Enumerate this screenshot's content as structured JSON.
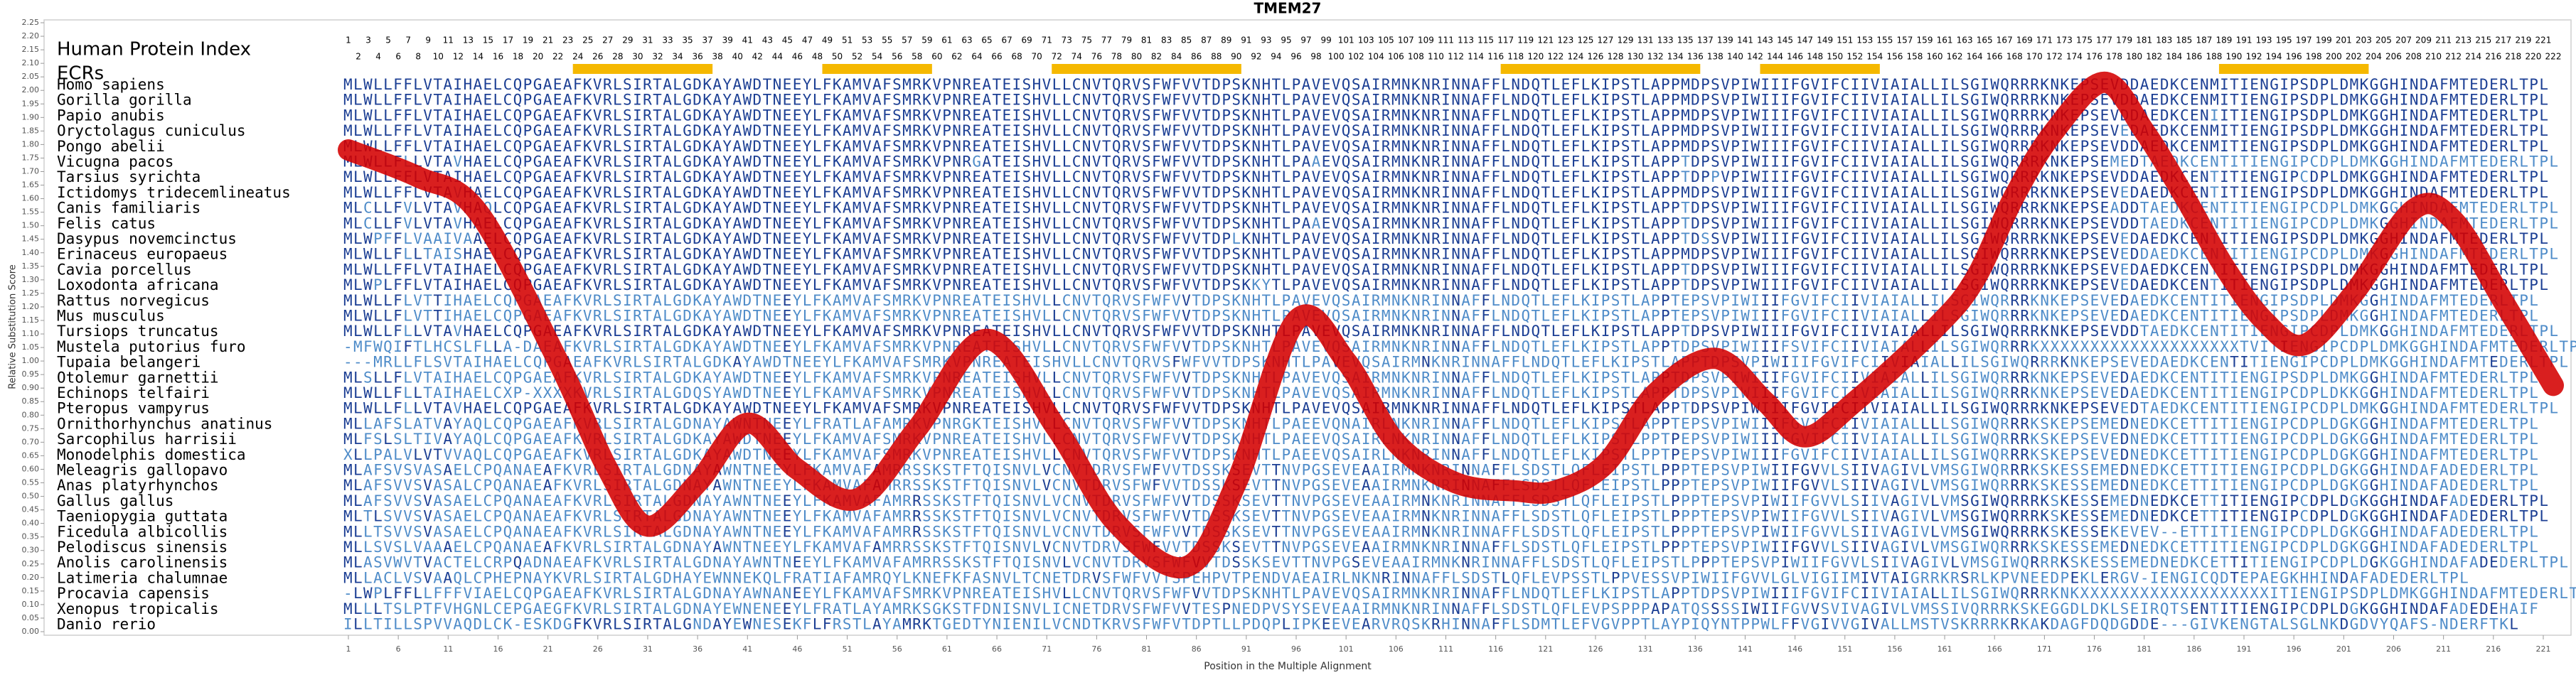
{
  "chart_data": {
    "type": "line",
    "title": "TMEM27",
    "xlabel": "Position in the Multiple Alignment",
    "ylabel": "Relative Substitution Score",
    "color": "#d40000",
    "x": [
      1,
      8,
      14,
      22,
      27,
      31,
      36,
      41,
      46,
      52,
      58,
      65,
      72,
      78,
      85,
      90,
      96,
      101,
      106,
      112,
      118,
      122,
      127,
      132,
      138,
      143,
      147,
      152,
      160,
      164,
      168,
      172,
      177,
      181,
      185,
      189,
      193,
      197,
      202,
      208,
      212,
      217,
      222
    ],
    "values": [
      1.78,
      1.68,
      1.55,
      1.0,
      0.6,
      0.39,
      0.55,
      0.77,
      0.6,
      0.49,
      0.75,
      1.08,
      0.75,
      0.4,
      0.24,
      0.55,
      1.15,
      1.0,
      0.7,
      0.55,
      0.52,
      0.52,
      0.62,
      0.88,
      1.01,
      0.85,
      0.72,
      0.85,
      1.12,
      1.3,
      1.61,
      1.85,
      2.03,
      1.85,
      1.61,
      1.35,
      1.15,
      1.06,
      1.25,
      1.56,
      1.52,
      1.22,
      0.91
    ],
    "xlim": [
      1,
      222
    ],
    "ylim": [
      0,
      2.25
    ],
    "xticks": [
      1,
      6,
      11,
      16,
      21,
      26,
      31,
      36,
      41,
      46,
      51,
      56,
      61,
      66,
      71,
      76,
      81,
      86,
      91,
      96,
      101,
      106,
      111,
      116,
      121,
      126,
      131,
      136,
      141,
      146,
      151,
      156,
      161,
      166,
      171,
      176,
      181,
      186,
      191,
      196,
      201,
      206,
      211,
      216,
      221
    ],
    "yticks": [
      {
        "value": 0,
        "label": "0.00"
      },
      {
        "value": 0.05,
        "label": "0.05"
      },
      {
        "value": 0.1,
        "label": "0.10"
      },
      {
        "value": 0.15,
        "label": "0.15"
      },
      {
        "value": 0.2,
        "label": "0.20"
      },
      {
        "value": 0.25,
        "label": "0.25"
      },
      {
        "value": 0.3,
        "label": "0.30"
      },
      {
        "value": 0.35,
        "label": "0.35"
      },
      {
        "value": 0.4,
        "label": "0.40"
      },
      {
        "value": 0.45,
        "label": "0.45"
      },
      {
        "value": 0.5,
        "label": "0.50"
      },
      {
        "value": 0.55,
        "label": "0.55"
      },
      {
        "value": 0.6,
        "label": "0.60"
      },
      {
        "value": 0.65,
        "label": "0.65"
      },
      {
        "value": 0.7,
        "label": "0.70"
      },
      {
        "value": 0.75,
        "label": "0.75"
      },
      {
        "value": 0.8,
        "label": "0.80"
      },
      {
        "value": 0.85,
        "label": "0.85"
      },
      {
        "value": 0.9,
        "label": "0.90"
      },
      {
        "value": 0.95,
        "label": "0.95"
      },
      {
        "value": 1,
        "label": "1.00"
      },
      {
        "value": 1.05,
        "label": "1.05"
      },
      {
        "value": 1.1,
        "label": "1.10"
      },
      {
        "value": 1.15,
        "label": "1.15"
      },
      {
        "value": 1.2,
        "label": "1.20"
      },
      {
        "value": 1.25,
        "label": "1.25"
      },
      {
        "value": 1.3,
        "label": "1.30"
      },
      {
        "value": 1.35,
        "label": "1.35"
      },
      {
        "value": 1.4,
        "label": "1.40"
      },
      {
        "value": 1.45,
        "label": "1.45"
      },
      {
        "value": 1.5,
        "label": "1.50"
      },
      {
        "value": 1.55,
        "label": "1.55"
      },
      {
        "value": 1.6,
        "label": "1.60"
      },
      {
        "value": 1.65,
        "label": "1.65"
      },
      {
        "value": 1.7,
        "label": "1.70"
      },
      {
        "value": 1.75,
        "label": "1.75"
      },
      {
        "value": 1.8,
        "label": "1.80"
      },
      {
        "value": 1.85,
        "label": "1.85"
      },
      {
        "value": 1.9,
        "label": "1.90"
      },
      {
        "value": 1.95,
        "label": "1.95"
      },
      {
        "value": 2,
        "label": "2.00"
      },
      {
        "value": 2.05,
        "label": "2.05"
      },
      {
        "value": 2.1,
        "label": "2.10"
      },
      {
        "value": 2.15,
        "label": "2.15"
      },
      {
        "value": 2.2,
        "label": "2.20"
      },
      {
        "value": 2.25,
        "label": "2.25"
      }
    ]
  },
  "index_label": "Human Protein Index",
  "human_protein_index": [
    1,
    2,
    3,
    4,
    5,
    6,
    7,
    8,
    9,
    10,
    11,
    12,
    13,
    14,
    15,
    16,
    17,
    18,
    19,
    20,
    21,
    22,
    23,
    24,
    25,
    26,
    27,
    28,
    29,
    30,
    31,
    32,
    33,
    34,
    35,
    36,
    37,
    38,
    39,
    40,
    41,
    42,
    43,
    44,
    45,
    46,
    47,
    48,
    49,
    50,
    51,
    52,
    53,
    54,
    55,
    56,
    57,
    58,
    59,
    60,
    61,
    62,
    63,
    64,
    65,
    66,
    67,
    68,
    69,
    70,
    71,
    72,
    73,
    74,
    75,
    76,
    77,
    78,
    79,
    80,
    81,
    82,
    83,
    84,
    85,
    86,
    87,
    88,
    89,
    90,
    91,
    92,
    93,
    94,
    95,
    96,
    97,
    98,
    99,
    100,
    101,
    102,
    103,
    104,
    105,
    106,
    107,
    108,
    109,
    110,
    111,
    112,
    113,
    114,
    115,
    116,
    117,
    118,
    119,
    120,
    121,
    122,
    123,
    124,
    125,
    126,
    127,
    128,
    129,
    130,
    131,
    132,
    133,
    134,
    135,
    136,
    137,
    138,
    139,
    140,
    141,
    142,
    143,
    144,
    145,
    146,
    147,
    148,
    149,
    150,
    151,
    152,
    153,
    154,
    155,
    156,
    157,
    158,
    159,
    160,
    161,
    162,
    163,
    164,
    165,
    166,
    167,
    168,
    169,
    170,
    171,
    172,
    173,
    174,
    175,
    176,
    177,
    178,
    179,
    180,
    181,
    182,
    183,
    184,
    185,
    186,
    187,
    188,
    189,
    190,
    191,
    192,
    193,
    194,
    195,
    196,
    197,
    198,
    199,
    200,
    201,
    202,
    203,
    204,
    205,
    206,
    207,
    208,
    209,
    210,
    211,
    212,
    213,
    214,
    215,
    216,
    217,
    218,
    219,
    220,
    221,
    222
  ],
  "ecr_label": "ECRs",
  "ecr_color": "#f5b800",
  "ecrs": [
    [
      24,
      37
    ],
    [
      49,
      59
    ],
    [
      72,
      90
    ],
    [
      117,
      136
    ],
    [
      143,
      154
    ],
    [
      189,
      203
    ]
  ],
  "alignment": {
    "rows": [
      {
        "species": "Homo sapiens",
        "sequence": "MLWLLFFLVTAIHAELCQPGAEAFKVRLSIRTALGDKAYAWDTNEEYLFKAMVAFSMRKVPNREATEISHVLLCNVTQRVSFWFVVTDPSKNHTLPAVEVQSAIRMNKNRINNAFFLNDQTLEFLKIPSTLAPPMDPSVPIWIIIFGVIFCIIVIAIALLILSGIWQRRRKNKEPSEVDDAEDKCENMITIENGIPSDPLDMKGGHINDAFMTEDERLTPL"
      },
      {
        "species": "Gorilla gorilla",
        "sequence": "MLWLLFFLVTAIHAELCQPGAEAFKVRLSIRTALGDKAYAWDTNEEYLFKAMVAFSMRKVPNREATEISHVLLCNVTQRVSFWFVVTDPSKNHTLPAVEVQSAIRMNKNRINNAFFLNDQTLEFLKIPSTLAPPMDPSVPIWIIIFGVIFCIIVIAIALLILSGIWQRRRKNKEPSEVDDAEDKCENMITIENGIPSDPLDMKGGHINDAFMTEDERLTPL"
      },
      {
        "species": "Papio anubis",
        "sequence": "MLWLLFFLVTAIHAELCQPGAEAFKVRLSIRTALGDKAYAWDTNEEYLFKAMVAFSMRKVPNREATEISHVLLCNVTQRVSFWFVVTDPSKNHTLPAVEVQSAIRMNKNRINNAFFLNDQTLEFLKIPSTLAPPMDPSVPIWIIIFGVIFCIIVIAIALLILSGIWQRRRKNKEPSEVDDAEDKCENIITIENGIPSDPLDMKGGHINDAFMTEDERLTPL"
      },
      {
        "species": "Oryctolagus cuniculus",
        "sequence": "MLWLLFFLVTAIHAELCQPGAEAFKVRLSIRTALGDKAYAWDTNEEYLFKAMVAFSMRKVPNREATEISHVLLCNVTQRVSFWFVVTDPSKNHTLPAVEVQSAIRMNKNRINNAFFLNDQTLEFLKIPSTLAPPMDPSVPIWIIIFGVIFCIIVIAIALLILSGIWQRRRKNKEPSEVEDAEDKCENMITIENGIPSDPLDMKGGHINDAFMTEDERLTPL"
      },
      {
        "species": "Pongo abelii",
        "sequence": "MLWLLFFLVTAIHAELCQPGAEAFKVRLSIRTALGDKAYAWDTNEEYLFKAMVAFSMRKVPNREATEISHVLLCNVTQRVSFWFVVTDPSKNHTLPAVEVQSAIRMNKNRINNAFFLNDQTLEFLKIPSTLAPPMDPSVPIWIIIFGVIFCIIVIAIALLILSGIWQRRRKNKEPSEVDDAEDKCENMITIENGIPSDPLDMKGGHINDAFMTEDERLTPL"
      },
      {
        "species": "Vicugna pacos",
        "sequence": "MLWLLFLLVTAVHAELCQPGAEAFKVRLSIRTALGDKAYAWDTNEEYLFKAMVAFSMRKVPNRGATEISHVLLCNVTQRVSFWFVVTDPSKNHTLPAAEVQSAIRMNKNRINNAFFLNDQTLEFLKIPSTLAPPTDPSVPIWIIIFGVIFCIIVIAIALLILSGIWQRRRKNKEPSEMEDTAEDKCENTITIENGIPCDPLDMKGGHINDAFMTEDERLTPL"
      },
      {
        "species": "Tarsius syrichta",
        "sequence": "MLWLLFFLVTAIHAELCQPGAEAFKVRLSIRTALGDKAYAWDTNEEYLFKAMVAFSMRKVPNREATEISHVLLCNVTQRVSFWFVVTDPSKNHTLPAVEVQSAIRMNKNRINNAFFLNDQTLEFLKIPSTLAPPTDPPVPIWIIIFGVIFCIIVIAIALLILSGIWQRRRKNKEPSEVDDAEDKCENTITIENGIPCDPLDMKGGHINDAFMTEDERLTPL"
      },
      {
        "species": "Ictidomys tridecemlineatus",
        "sequence": "MLWLLFFLVTAVHAELCQPGAEAFKVRLSIRTALGDKAYAWDTNEEYLFKAMVAFSMRKVPNREATEISHVLLCNVTQRVSFWFVVTDPSKNHTLPAVEVQSAIRMNKNRINNAFFLNDQTLEFLKIPSTLAPPMDPSVPIWIIIFGVIFCIIVIAIALLILSGIWQRRRKNKEPSEVEDAEDKCENTITIENGIPSDPLDMKGGHINDAFMTEDERLTPL"
      },
      {
        "species": "Canis familiaris",
        "sequence": "MLCLLFVLVTAVHAQLCQPGAEAFKVRLSIRTALGDKAYAWDTNEEYLFKAMVAFSMRKVPNREATEISHVLLCNVTQRVSFWFVVTDPSKNHTLPAVEVQSAIRMNKNRINNAFFLNDQTLEFLKIPSTLAPPTDPSVPIWIIIFGVIFCIIVIAIALLILSGIWQRRRKNKEPSEADDTAEDKCENTITIENGIPCDPLDMKGGHINDAFMTEDERLTPL"
      },
      {
        "species": "Felis catus",
        "sequence": "MLCLLFVLVTAVHAELCQPGAEAFKVRLSIRTALGDKAYAWDTNEEYLFKAMVAFSMRKVPNREATEISHVLLCNVTQRVSFWFVVTDPSKNHTLPAAEVQSAIRMNKNRINNAFFLNDQTLEFLKIPSTLAPPTDPSVPIWIIIFGVIFCIIVIAIALLILSGIWQRRRKNKEPSEVDDTAEDKCENTITIENGIPCDPLDMKGGHINDAFMTEDERLTPL"
      },
      {
        "species": "Dasypus novemcinctus",
        "sequence": "MLWPFFLVAAIVAAELCQPGAEAFKVRLSIRTALGDKAYAWDTNEEYLFKAMVAFSMRKVPNREATEISHVLLCNVTQRVSFWFVVTDPLKNHTLPAVEVQSAIRMNKNRINNAFFLNDQTLEFLKIPSTLAPPTDSSVPIWIIIFGVIFCIIVIAIALLILSGIWQRRRKNKEPSEVEDAEDKCENTITIENGIPSDPLDMKGGHINDAFMTEDERLTPL"
      },
      {
        "species": "Erinaceus europaeus",
        "sequence": "MLWLLFLLTAISHAELCQPGAEAFKVRLSIRTALGDKAYAWDTNEEYLFKAMVAFSMRKVPNREATEISHVLLCNVTQRVSFWFVVTDPSKNHTLPAVEVQSAIRMNKNRINNAFFLNDQTLEFLKIPSTLAPPMDPSVPIWIIIFGVIFCIIVIAIALLILSGIWQRRRKNKEPSEVEDDAEDKCENTITIENGIPCDPLDMKGGHINDAFMTEDERLTPL"
      },
      {
        "species": "Cavia porcellus",
        "sequence": "MLWLLFFLVTAIHAELCQPGAEAFKVRLSIRTALGDKAYAWDTNEEYLFKAMVAFSMRKVPNREATEISHVLLCNVTQRVSFWFVVTDPSKNHTLPAVEVQSAIRMNKNRINNAFFLNDQTLEFLKIPSTLAPPTDPSVPIWIIIFGVIFCIIVIAIALLILSGIWQRRRKNKEPSEVEDAEDKCENTITIENGIPSDPLDMKGGHINDAFMTEDERLTPL"
      },
      {
        "species": "Loxodonta africana",
        "sequence": "MLWPLFFLVTAIHAELCQPGAEAFKVRLSIRTALGDKAYAWDTNEEYLFKAMVAFSMRKVPNREATEISHVLLCNVTQRVSFWFVVTDPSKKYTLPAVEVQSAIRMNKNRINNAFFLNDQTLEFLKIPSTLAPPTDPSVPIWIIIFGVIFCIIVIAIALLILSGIWQRRRKNKEPSEVEDAEDKCENTITIENGIPSDPLDMKGGHINDAFMTEDERLTPL"
      },
      {
        "species": "Rattus norvegicus",
        "sequence": "MLWLLFLVTTIHAELCQPGAEAFKVRLSIRTALGDKAYAWDTNEEYLFKAMVAFSMRKVPNREATEISHVLLCNVTQRVSFWFVVTDPSKNHTLPAVEVQSAIRMNKNRINNAFFLNDQTLEFLKIPSTLAPPTEPSVPIWIIIFGVIFCIIVIAIALLILSGIWQRRRKNKEPSEVEDAEDKCENTITIENGIPSDPLDMKGGHINDAFMTEDERLTPL"
      },
      {
        "species": "Mus musculus",
        "sequence": "MLWLLFLVTTIHAELCQPGAEAFKVRLSIRTALGDKAYAWDTNEEYLFKAMVAFSMRKVPNREATEISHVLLCNVTQRVSFWFVVTDPSKNHTLPAVEVQSAIRMNKNRINNAFFLNDQTLEFLKIPSTLAPPTEPSVPIWIIIFGVIFCIIVIAIALLILSGIWQRRRKNKEPSEVEDAEDKCENTITIENGIPSDPLDMKGGHINDAFMTEDERLTPL"
      },
      {
        "species": "Tursiops truncatus",
        "sequence": "MLWLLFLLVTAVHAELCQPGAEAFKVRLSIRTALGDKAYAWDTNEEYLFKAMVAFSMRKVPNREATEISHVLLCNVTQRVSFWFVVTDPSKNHTLPAVEVQSAIRMNKNRINNAFFLNDQTLEFLKIPSTLAPPTDPSVPIWIIIFGVIFCIIVIAIALLILSGIWQRRRKNKEPSEVDDTAEDKCENTITIENGIPCDPLDMKGGHINDAFMTEDERLTPL"
      },
      {
        "species": "Mustela putorius furo",
        "sequence": "-MFWQIFTLHCSLFLLA-DAEAFKVRLSIRTALGDKAYAWDTNEEYLFKAMVAFSMRKVPNREATEISHVLLCNVTQRVSFWFVVTDPSKNHTLPAVEVQSAIRMNKNRINNAFFLNDQTLEFLKIPSTLAPPTDPSVPIWIIIFSVIFCIIVIAIALLILSGIWQRRRKXXXXXXXXXXXXXXXXXXXXTVITIENGIPCDPLDMKGGHINDAFMTEDERLTPL"
      },
      {
        "species": "Tupaia belangeri",
        "sequence": "---MRLLFLSVTAIHAELCQPGAEAFKVRLSIRTALGDKAYAWDTNEEYLFKAMVAFSMRKVPNREATEISHVLLCNVTQRVSFWFVVTDPSKNHTLPAVEVQSAIRMNKNRINNAFFLNDQTLEFLKIPSTLAPPTDPSVPIWIIIFGVIFCIIVIAIALLILSGIWQRRRKNKEPSEVEDAEDKCENTITIENGIPCDPLDMKGGHINDAFMTEDERLTPL"
      },
      {
        "species": "Otolemur garnettii",
        "sequence": "MLSLLFLVTAIHAELCQPGAEAFKVRLSIRTALGDKAYAWDTNEEYLFKAMVAFSMRKVPNREATEISHVLLCNVTQRVSFWFVVTDPSKNHTLPAVEVQSAIRMNKNRINNAFFLNDQTLEFLKIPSTLAPPTDPSVPIWIIIFGVIFCIIVIAIALLILSGIWQRRRKNKEPSEVEDAEDKCENTITIENGIPSDPLDMKGGHINDAFMTEDERLTPL"
      },
      {
        "species": "Echinops telfairi",
        "sequence": "MLWLLFLLTAIHAELCXP-XXXXKVRLSIRTALGDQSYAWDTNEEYLFKAMVAFSMRKVPNREATEISHVLLCNVTQRVSFWFVVTDPSKNHTLPAVEVQSAIRMNKNRINNAFFLNDQTLEFLKIPSTLAPPTDPSVPIWIIIFGVIFCIIVIAIALLILSGIWQRRRKNKEPSEVEDAEDKCENTITIENGIPCDPLDKKGGHINDAFMTEDERLTPL"
      },
      {
        "species": "Pteropus vampyrus",
        "sequence": "MLWLLFLLVTAVHAELCQPGAEAFKVRLSIRTALGDKAYAWDTNEEYLFKAMVAFSMRKVPNREATEISHVLLCNVTQRVSFWFVVTDPSKNHTLPAVEVQSAIRMNKNRINNAFFLNDQTLEFLKIPSTLAPPTDPSVPIWIIIFGVIFCIIVIAIALLILSGIWQRRRKNKEPSEVEDTAEDKCENTITIENGIPCDPLDMKGGHINDAFMTEDERLTPL"
      },
      {
        "species": "Ornithorhynchus anatinus",
        "sequence": "MLLAFSLATVAYAQLCQPGAEAFKVRLSIRTALGDNAYAWNTNEEYLFRATLAFAMRKVPNRGKTEISHVLLCNVTQRVSFWFVVTDPSKNHTLPAEEVQNAIRLNKNRINNAFFLNDQTLEFLKIPSTLAPPTEPSVPIWIIIFGVIFCIIVIAIALLLLSGIWQRRRKSKEPSEMEDNEDKCETTITIENGIPCDPLDGKGGHINDAFMTEDERLTPL"
      },
      {
        "species": "Sarcophilus harrisii",
        "sequence": "MLFSLSLTIVAYAQLCQPGAEAFKVRLSIRTALGDKAYAWDTNEEYLFKAMVAFSMRKVPNREATEISHVLLCNVTQRVSFWFVVTDPSKNHTLPAEEVQSAIRLNKNRINNAFFLNDQTLEFLKIPSTLPPTPEPSVPIWIIIFGVIFCIIVIAIALLILSGIWQRRRKSKEPSEVEDNEDKCETTITIENGIPCDPLDGKGGHINDAFMTEDERLTPL"
      },
      {
        "species": "Monodelphis domestica",
        "sequence": "XLLPALVLVTVVAQLCQPGAEAFKVRLSIRTALGDKAYAWDTNEEYLFKAMVAFSMRKVPNREATEISHVLLCNVTQRVSFWFVVTDPSKNHTLPAEEVQSAIRLNKNRINNAFFLNDQTLEFLKIPSTLPPTPEPSVPIWIIIFGVIFCIIVIAIALLILSGIWQRRRKSKEPSEVEDNEDKCETTITIENGIPCDPLDGKGGHINDAFMTEDERLTPL"
      },
      {
        "species": "Meleagris gallopavo",
        "sequence": "MLAFSVSVASAELCPQANAEAFKVRLSIRTALGDNAYAWNTNEEYLFKAMVAFAMRRSSKSTFTQISNVLVCNVTDRVSFWFVVTDSSKSEVTTNVPGSEVEAAIRMNKNRINNAFFLSDSTLQFLEIPSTLPPPTEPSVPIWIIFGVVLSIIVAGIVLVMSGIWQRRRKSKESSEMEDNEDKCETTITIENGIPCDPLDGKGGHINDAFADEDERLTPL"
      },
      {
        "species": "Anas platyrhynchos",
        "sequence": "MLAFSVVSVASALCPQANAEAFKVRLSIRTALGDNAYAWNTNEEYLFKAMVAFAMRRSSKSTFTQISNVLVCNVTDRVSFWFVVTDSSKSEVTTNVPGSEVEAAIRMNKNRINNAFFLSDSTLQFLEIPSTLPPPTEPSVPIWIIFGVVLSIIVAGIVLVMSGIWQRRRKSKESSEMEDNEDKCETTITIENGIPCDPLDGKGGHINDAFADEDERLTPL"
      },
      {
        "species": "Gallus gallus",
        "sequence": "MLAFSVVSVASAELCPQANAEAFKVRLSIRTALGDNAYAWNTNEEYLFKAMVAFAMRRSSKSTFTQISNVLVCNVTDRVSFWFVVTDSSKSEVTTNVPGSEVEAAIRMNKNRINNAFFLSDSTLQFLEIPSTLPPPTEPSVPIWIIFGVVLSIIVAGIVLVMSGIWQRRRKSKESSEMEDNEDKCETTITIENGIPCDPLDGKGGHINDAFADEDERLTPL"
      },
      {
        "species": "Taeniopygia guttata",
        "sequence": "MLTLSVVSVASAELCPQANAEAFKVRLSIRTALGDNAYAWNTNEEYLFKAMVAFAMRRSSKSTFTQISNVLVCNVTDRVSFWFVVTDSSKSEVTTNVPGSEVEAAIRMNKNRINNAFFLSDSTLQFLEIPSTLPPPTEPSVPIWIIFGVVLSIIVAGIVLVMSGIWQRRRKSKESSEMEDNEDKCETTITIENGIPCDPLDGKGGHINDAFADEDERLTPL"
      },
      {
        "species": "Ficedula albicollis",
        "sequence": "MLLTSVVSVASAELCPQANAEAFKVRLSIRTALGDNAYAWNTNEEYLFKAMVAFAMRRSSKSTFTQISNVLVCNVTDRVSFWFVVTDSSKSEVTTNVPGSEVEAAIRMNKNRINNAFFLSDSTLQFLEIPSTLPPPTEPSVPIWIIFGVVLSIIVAGIVLVMSGIWQRRRKSKESSEKEVEV--ETTITIENGIPCDPLDGKGGHINDAFADEDERLTPL"
      },
      {
        "species": "Pelodiscus sinensis",
        "sequence": "MLLSVSLVAAAELCPQANAEAFKVRLSIRTALGDNAYAWNTNEEYLFKAMVAFAMRRSSKSTFTQISNVLVCNVTDRVSFWFVVTDSSKSEVTTNVPGSEVEAAIRMNKNRINNAFFLSDSTLQFLEIPSTLPPPTEPSVPIWIIFGVVLSIIVAGIVLVMSGIWQRRRKSKESSEMEDNEDKCETTITIENGIPCDPLDGKGGHINDAFADEDERLTPL"
      },
      {
        "species": "Anolis carolinensis",
        "sequence": "MLASVWVTVACTELCRPQADNAEAFKVRLSIRTALGDNAYAWNTNEEYLFKAMVAFAMRRSSKSTFTQISNVLVCNVTDRVSFWFVVTDSSKSEVTTNVPGSEVEAAIRMNKNRINNAFFLSDSTLQFLEIPSTLPPPTEPSVPIWIIFGVVLSIIVAGIVLVMSGIWQRRRKSKESSEMEDNEDKCETTITIENGIPCDPLDGKGGHINDAFADEDERLTPL"
      },
      {
        "species": "Latimeria chalumnae",
        "sequence": "MLLACLVSVAAQLCPHEPNAYKVRLSIRTALGDHAYEWNNEKQLFRATIAFAMRQYLKNEFKFASNVLTCNETDRVSFWFVVTSPEHPVTPENDVAEAIRLNKNRINNAFFLSDSTLQFLEVPSSTLPPVESSVPIWIIFGVVLGLVIGIIMIVTAIGRRKRSRLKPVNEEDPEKLERGV-IENGICQDTEPAEGKHHINDAFADEDERLTPL"
      },
      {
        "species": "Procavia capensis",
        "sequence": "-LWPLFFLLFFFVIAELCQPGAEAFKVRLSIRTALGDNAYAWNANEEYLFKAMVAFSMRKVPNREATEISHVLLCNVTQRVSFWFVVTDPSKNHTLPAVEVQSAIRMNKNRINNAFFLNDQTLEFLKIPSTLAPPTDPSVPIWIIIFGVIFCIIVIAIALLILSGIWQRRRKNKXXXXXXXXXXXXXXXXXXXITIENGIPSDPLDMKGGHINDAFMTEDERLTPL"
      },
      {
        "species": "Xenopus tropicalis",
        "sequence": "MLLLTSLPTFVHGNLCEPGAEGFKVRLSIRTALGDNAYEWNENEEYLFRATLAYAMRKSGKSTFDNISNVLICNETDRVSFWFVVTESPNEDPVSYSEVEAAIRMNKNRINNAFFLSDSTLQFLEVPSPPPAPATQSSSSIWIIFGVVSVIVAGIVLVMSSIVQRRRKSKEGGDLDKLSEIRQTSENTITIENGIPCDPLDGKGGHINDAFADEDEHAIF"
      },
      {
        "species": "Danio rerio",
        "sequence": "ILLTILLSPVVAQDLCK-ESKDGFKVRLSIRTALGNDAYEWNESEKFLFRSTLAYAMRKTGEDTYNIENILVCNDTKRVSFWFVTDPTLLPDQPLIPKEEVEARVRQSKRHINNAFFLSDMTLEFVGVPPTLAYPIQYNTPPWLFFVGIVVGIVALLMSTVSKRRRKRKAKDAGFDQDGDDE---GIVKENGTALSGLNKDGDVYQAFS-NDERFTKL"
      }
    ]
  }
}
